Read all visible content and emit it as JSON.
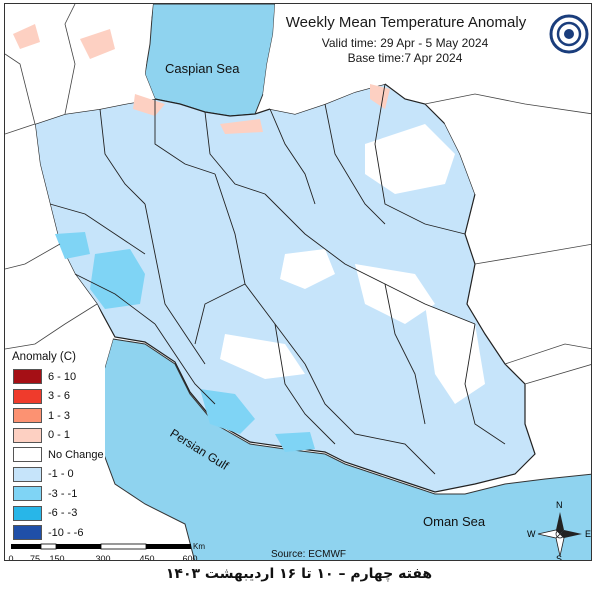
{
  "header": {
    "title": "Weekly Mean Temperature Anomaly",
    "valid_time": "Valid time: 29 Apr - 5 May 2024",
    "base_time": "Base time:7 Apr 2024"
  },
  "labels": {
    "caspian": "Caspian Sea",
    "persian_gulf": "Persian Gulf",
    "oman_sea": "Oman Sea"
  },
  "legend": {
    "title": "Anomaly (C)",
    "items": [
      {
        "label": "6 - 10",
        "color": "#a50f15"
      },
      {
        "label": "3 - 6",
        "color": "#ef3b2c"
      },
      {
        "label": "1 - 3",
        "color": "#fc9272"
      },
      {
        "label": "0 - 1",
        "color": "#fdd0c2"
      },
      {
        "label": "No Change",
        "color": "#ffffff"
      },
      {
        "label": "-1 - 0",
        "color": "#c6e4fa"
      },
      {
        "label": "-3 - -1",
        "color": "#7fd4f5"
      },
      {
        "label": "-6 - -3",
        "color": "#28b6e8"
      },
      {
        "label": "-10 - -6",
        "color": "#1f4fa8"
      }
    ]
  },
  "scale_bar": {
    "ticks": [
      "0",
      "75",
      "150",
      "300",
      "450",
      "600"
    ],
    "unit": "Km"
  },
  "source": "Source: ECMWF",
  "compass": {
    "n": "N",
    "s": "S",
    "e": "E",
    "w": "W"
  },
  "caption": "هفته چهارم – ۱۰ تا ۱۶ اردیبهشت ۱۴۰۳",
  "colors": {
    "sea": "#8fd3ef",
    "sea_dark": "#6fc4e6",
    "land_outside": "#ffffff",
    "boundary": "#222222"
  }
}
